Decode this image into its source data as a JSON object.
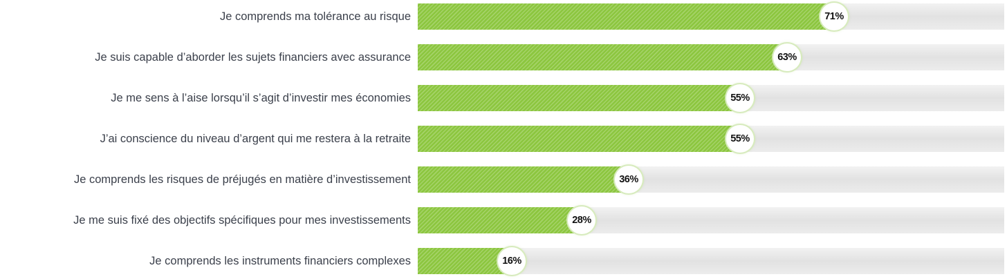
{
  "chart_data": {
    "type": "bar",
    "orientation": "horizontal",
    "categories": [
      "Je comprends ma tolérance au risque",
      "Je suis capable d’aborder les sujets financiers avec assurance",
      "Je me sens à l’aise lorsqu’il s’agit d’investir mes économies",
      "J’ai conscience du niveau d’argent qui me restera à la retraite",
      "Je comprends les risques de préjugés en matière d’investissement",
      "Je me suis fixé des objectifs spécifiques pour mes investissements",
      "Je comprends les instruments financiers complexes"
    ],
    "values": [
      71,
      63,
      55,
      55,
      36,
      28,
      16
    ],
    "value_labels": [
      "71%",
      "63%",
      "55%",
      "55%",
      "36%",
      "28%",
      "16%"
    ],
    "unit": "%",
    "xlim": [
      0,
      100
    ],
    "grid": false,
    "legend": "none",
    "colors": {
      "bar": "#8cc63f",
      "track": "#e6e6e6",
      "label_text": "#3a3f4a",
      "value_text": "#111111"
    }
  }
}
